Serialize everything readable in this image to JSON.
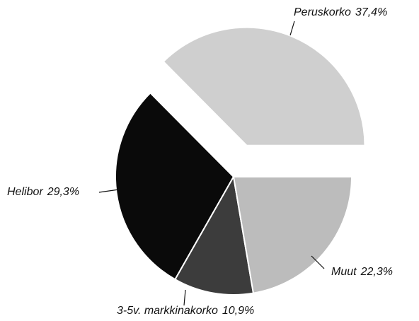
{
  "chart_data": {
    "type": "pie",
    "categories": [
      "Peruskorko",
      "Helibor",
      "3-5v. markkinakorko",
      "Muut"
    ],
    "values": [
      37.4,
      29.3,
      10.9,
      22.3
    ],
    "value_labels": [
      "37,4%",
      "29,3%",
      "10,9%",
      "22,3%"
    ],
    "colors": [
      "#cfcfcf",
      "#0a0a0a",
      "#3c3c3c",
      "#bcbcbc"
    ],
    "explode": [
      true,
      false,
      false,
      false
    ]
  }
}
